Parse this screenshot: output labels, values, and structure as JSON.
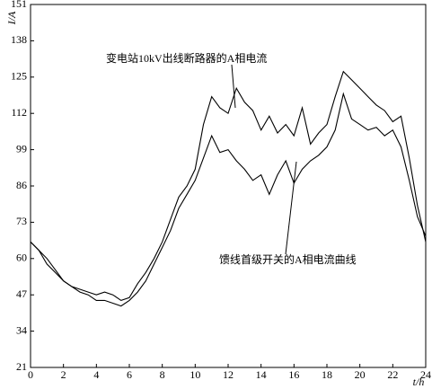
{
  "chart_data": {
    "type": "line",
    "xlabel": "t/h",
    "ylabel": "I/A",
    "x": [
      0,
      0.5,
      1,
      1.5,
      2,
      2.5,
      3,
      3.5,
      4,
      4.5,
      5,
      5.5,
      6,
      6.5,
      7,
      7.5,
      8,
      8.5,
      9,
      9.5,
      10,
      10.5,
      11,
      11.5,
      12,
      12.5,
      13,
      13.5,
      14,
      14.5,
      15,
      15.5,
      16,
      16.5,
      17,
      17.5,
      18,
      18.5,
      19,
      19.5,
      20,
      20.5,
      21,
      21.5,
      22,
      22.5,
      23,
      23.5,
      24
    ],
    "series": [
      {
        "name": "变电站10kV出线断路器的A相电流",
        "color": "#000000",
        "values": [
          66,
          63,
          58,
          55,
          52,
          50,
          49,
          48,
          47,
          48,
          47,
          45,
          46,
          51,
          55,
          60,
          66,
          74,
          82,
          86,
          92,
          108,
          118,
          114,
          112,
          121,
          116,
          113,
          106,
          111,
          105,
          108,
          104,
          114,
          101,
          105,
          108,
          118,
          127,
          124,
          121,
          118,
          115,
          113,
          109,
          111,
          96,
          79,
          66
        ]
      },
      {
        "name": "馈线首级开关的A相电流曲线",
        "color": "#000000",
        "values": [
          66,
          63,
          60,
          56,
          52,
          50,
          48,
          47,
          45,
          45,
          44,
          43,
          45,
          48,
          52,
          58,
          64,
          70,
          78,
          83,
          88,
          96,
          104,
          98,
          99,
          95,
          92,
          88,
          90,
          83,
          90,
          95,
          87,
          92,
          95,
          97,
          100,
          106,
          119,
          110,
          108,
          106,
          107,
          104,
          106,
          100,
          88,
          75,
          68
        ]
      }
    ],
    "xlim": [
      0,
      24
    ],
    "xticks": [
      0,
      2,
      4,
      6,
      8,
      10,
      12,
      14,
      16,
      18,
      20,
      22,
      24
    ],
    "ylim": [
      21,
      151
    ],
    "yticks": [
      21,
      34,
      47,
      60,
      73,
      86,
      99,
      112,
      125,
      138,
      151
    ]
  }
}
